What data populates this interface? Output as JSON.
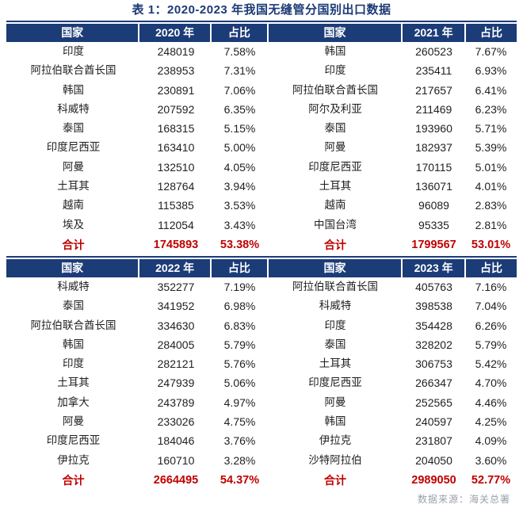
{
  "title": "表 1：2020-2023 年我国无缝管分国别出口数据",
  "colors": {
    "header_bg": "#1c3c78",
    "title_color": "#1b3a76",
    "total_color": "#c00000",
    "body_color": "#1f1f1f",
    "source_color": "#9aa0a8"
  },
  "labels": {
    "country": "国家",
    "share": "占比",
    "total": "合计"
  },
  "source": "数据来源：海关总署",
  "sections": [
    {
      "left": {
        "year": "2020 年",
        "rows": [
          {
            "country": "印度",
            "value": "248019",
            "share": "7.58%"
          },
          {
            "country": "阿拉伯联合酋长国",
            "value": "238953",
            "share": "7.31%"
          },
          {
            "country": "韩国",
            "value": "230891",
            "share": "7.06%"
          },
          {
            "country": "科威特",
            "value": "207592",
            "share": "6.35%"
          },
          {
            "country": "泰国",
            "value": "168315",
            "share": "5.15%"
          },
          {
            "country": "印度尼西亚",
            "value": "163410",
            "share": "5.00%"
          },
          {
            "country": "阿曼",
            "value": "132510",
            "share": "4.05%"
          },
          {
            "country": "土耳其",
            "value": "128764",
            "share": "3.94%"
          },
          {
            "country": "越南",
            "value": "115385",
            "share": "3.53%"
          },
          {
            "country": "埃及",
            "value": "112054",
            "share": "3.43%"
          }
        ],
        "total_value": "1745893",
        "total_share": "53.38%"
      },
      "right": {
        "year": "2021 年",
        "rows": [
          {
            "country": "韩国",
            "value": "260523",
            "share": "7.67%"
          },
          {
            "country": "印度",
            "value": "235411",
            "share": "6.93%"
          },
          {
            "country": "阿拉伯联合酋长国",
            "value": "217657",
            "share": "6.41%"
          },
          {
            "country": "阿尔及利亚",
            "value": "211469",
            "share": "6.23%"
          },
          {
            "country": "泰国",
            "value": "193960",
            "share": "5.71%"
          },
          {
            "country": "阿曼",
            "value": "182937",
            "share": "5.39%"
          },
          {
            "country": "印度尼西亚",
            "value": "170115",
            "share": "5.01%"
          },
          {
            "country": "土耳其",
            "value": "136071",
            "share": "4.01%"
          },
          {
            "country": "越南",
            "value": "96089",
            "share": "2.83%"
          },
          {
            "country": "中国台湾",
            "value": "95335",
            "share": "2.81%"
          }
        ],
        "total_value": "1799567",
        "total_share": "53.01%"
      }
    },
    {
      "left": {
        "year": "2022 年",
        "rows": [
          {
            "country": "科威特",
            "value": "352277",
            "share": "7.19%"
          },
          {
            "country": "泰国",
            "value": "341952",
            "share": "6.98%"
          },
          {
            "country": "阿拉伯联合酋长国",
            "value": "334630",
            "share": "6.83%"
          },
          {
            "country": "韩国",
            "value": "284005",
            "share": "5.79%"
          },
          {
            "country": "印度",
            "value": "282121",
            "share": "5.76%"
          },
          {
            "country": "土耳其",
            "value": "247939",
            "share": "5.06%"
          },
          {
            "country": "加拿大",
            "value": "243789",
            "share": "4.97%"
          },
          {
            "country": "阿曼",
            "value": "233026",
            "share": "4.75%"
          },
          {
            "country": "印度尼西亚",
            "value": "184046",
            "share": "3.76%"
          },
          {
            "country": "伊拉克",
            "value": "160710",
            "share": "3.28%"
          }
        ],
        "total_value": "2664495",
        "total_share": "54.37%"
      },
      "right": {
        "year": "2023 年",
        "rows": [
          {
            "country": "阿拉伯联合酋长国",
            "value": "405763",
            "share": "7.16%"
          },
          {
            "country": "科威特",
            "value": "398538",
            "share": "7.04%"
          },
          {
            "country": "印度",
            "value": "354428",
            "share": "6.26%"
          },
          {
            "country": "泰国",
            "value": "328202",
            "share": "5.79%"
          },
          {
            "country": "土耳其",
            "value": "306753",
            "share": "5.42%"
          },
          {
            "country": "印度尼西亚",
            "value": "266347",
            "share": "4.70%"
          },
          {
            "country": "阿曼",
            "value": "252565",
            "share": "4.46%"
          },
          {
            "country": "韩国",
            "value": "240597",
            "share": "4.25%"
          },
          {
            "country": "伊拉克",
            "value": "231807",
            "share": "4.09%"
          },
          {
            "country": "沙特阿拉伯",
            "value": "204050",
            "share": "3.60%"
          }
        ],
        "total_value": "2989050",
        "total_share": "52.77%"
      }
    }
  ]
}
